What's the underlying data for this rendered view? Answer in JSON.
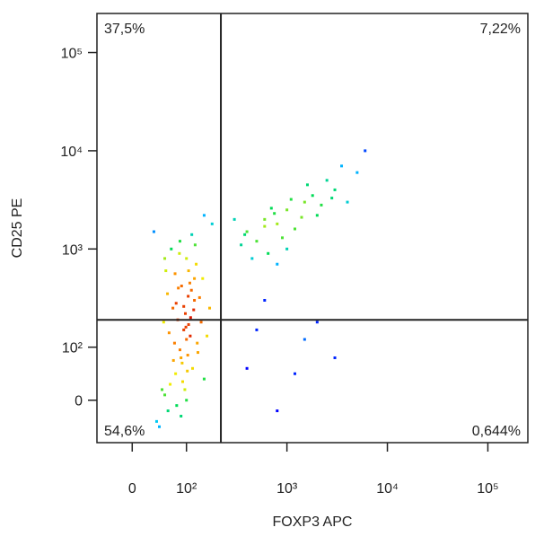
{
  "chart_data": {
    "type": "scatter",
    "xlabel": "FOXP3 APC",
    "ylabel": "CD25 PE",
    "xscale": "biexponential",
    "yscale": "biexponential",
    "xlim": [
      -65,
      250000
    ],
    "ylim": [
      -80,
      250000
    ],
    "xticks": [
      0,
      {
        "value": 100,
        "label": "10²"
      },
      {
        "value": 1000,
        "label": "10³"
      },
      {
        "value": 10000,
        "label": "10⁴"
      },
      {
        "value": 100000,
        "label": "10⁵"
      }
    ],
    "yticks": [
      0,
      {
        "value": 100,
        "label": "10²"
      },
      {
        "value": 1000,
        "label": "10³"
      },
      {
        "value": 10000,
        "label": "10⁴"
      },
      {
        "value": 100000,
        "label": "10⁵"
      }
    ],
    "gates": {
      "x": 220,
      "y": 190
    },
    "quadrant_labels": {
      "top_left": "37,5%",
      "top_right": "7,22%",
      "bottom_left": "54,6%",
      "bottom_right": "0,644%"
    },
    "x": [
      80,
      100,
      90,
      110,
      70,
      120,
      95,
      85,
      105,
      75,
      130,
      60,
      100,
      90,
      115,
      140,
      65,
      100,
      88,
      120,
      50,
      150,
      95,
      105,
      78,
      92,
      112,
      68,
      125,
      98,
      55,
      160,
      82,
      108,
      72,
      135,
      88,
      102,
      118,
      62,
      45,
      170,
      93,
      99,
      87,
      113,
      76,
      128,
      81,
      104,
      58,
      145,
      97,
      109,
      84,
      66,
      122,
      91,
      103,
      79,
      400,
      600,
      800,
      1000,
      1500,
      2000,
      500,
      3000,
      1200,
      700,
      2500,
      900,
      350,
      1800,
      4000,
      300,
      1100,
      650,
      2200,
      5000,
      800,
      1400,
      450,
      3500,
      600,
      1600,
      2800,
      1000,
      380,
      750,
      500,
      1200,
      800,
      2000,
      600,
      3000,
      400,
      1500,
      40,
      150,
      60,
      180,
      6000
    ],
    "y": [
      50,
      120,
      80,
      200,
      30,
      300,
      150,
      400,
      600,
      250,
      90,
      10,
      0,
      -30,
      60,
      180,
      350,
      800,
      1200,
      500,
      -50,
      40,
      260,
      170,
      110,
      70,
      380,
      140,
      700,
      220,
      20,
      130,
      -10,
      450,
      1000,
      320,
      95,
      55,
      240,
      600,
      -40,
      250,
      35,
      160,
      900,
      1400,
      75,
      110,
      280,
      330,
      180,
      500,
      20,
      130,
      190,
      -20,
      1100,
      420,
      85,
      560,
      1500,
      2000,
      1800,
      2500,
      3000,
      2200,
      1200,
      4000,
      1600,
      2600,
      5000,
      1300,
      1100,
      3500,
      3000,
      2000,
      3200,
      900,
      2800,
      6000,
      700,
      2100,
      800,
      7000,
      1700,
      4500,
      3300,
      1000,
      1400,
      2300,
      150,
      50,
      -20,
      180,
      300,
      80,
      60,
      120,
      1500,
      2200,
      800,
      1800,
      10000
    ]
  }
}
